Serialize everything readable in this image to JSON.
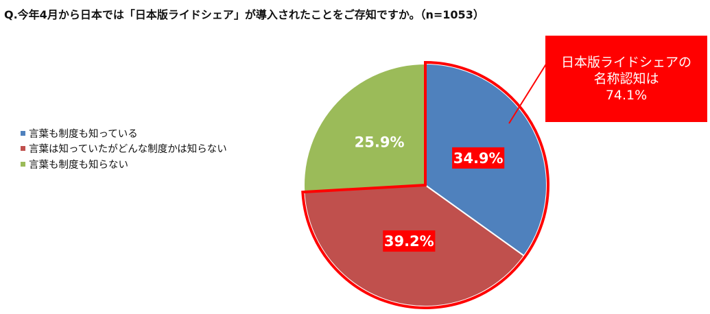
{
  "question": "Q.今年4月から日本では「日本版ライドシェア」が導入されたことをご存知ですか。（n=1053）",
  "callout": {
    "lines": [
      "日本版ライドシェアの",
      "名称認知は",
      "74.1%"
    ],
    "color": "#ff0000"
  },
  "chart_data": {
    "type": "pie",
    "categories": [
      "言葉も制度も知っている",
      "言葉は知っていたがどんな制度かは知らない",
      "言葉も制度も知らない"
    ],
    "values": [
      34.9,
      39.2,
      25.9
    ],
    "labels": [
      "34.9%",
      "39.2%",
      "25.9%"
    ],
    "colors": [
      "#4f81bd",
      "#c0504d",
      "#9bbb59"
    ],
    "highlight_color": "#ff0000",
    "highlighted": [
      0,
      1
    ],
    "legend_position": "left"
  }
}
